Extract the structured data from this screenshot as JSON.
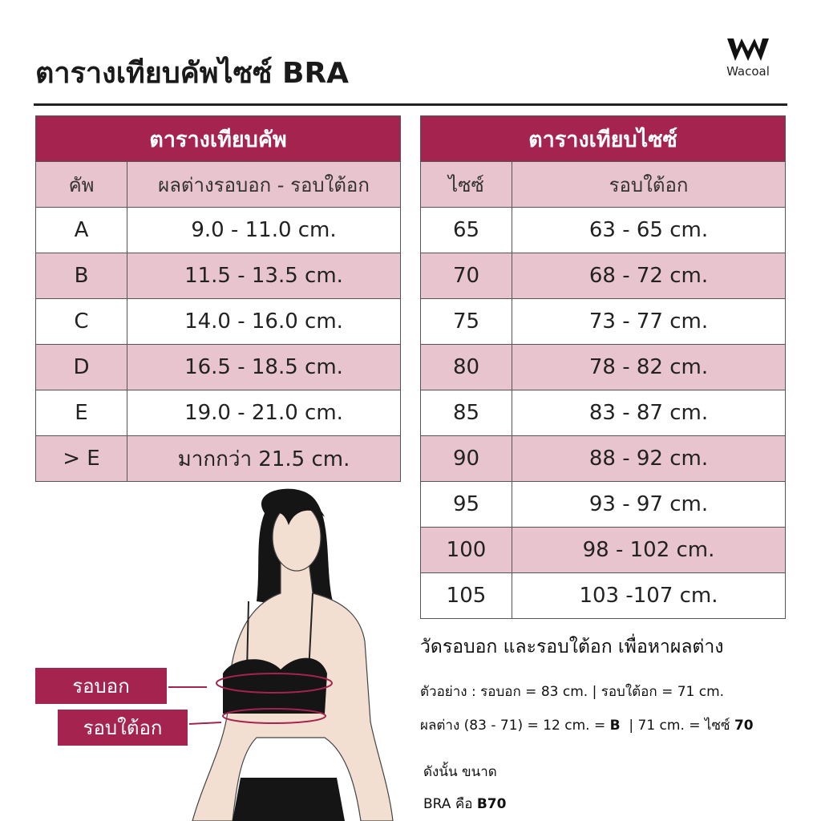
{
  "title": "ตารางเทียบคัพไซซ์ BRA",
  "logo": {
    "brand": "Wacoal"
  },
  "colors": {
    "accent": "#A4234F",
    "row_pink": "#E8C4CF"
  },
  "cup_table": {
    "title": "ตารางเทียบคัพ",
    "headers": [
      "คัพ",
      "ผลต่างรอบอก - รอบใต้อก"
    ],
    "rows": [
      [
        "A",
        "9.0 - 11.0 cm."
      ],
      [
        "B",
        "11.5 - 13.5 cm."
      ],
      [
        "C",
        "14.0 - 16.0 cm."
      ],
      [
        "D",
        "16.5 - 18.5 cm."
      ],
      [
        "E",
        "19.0 - 21.0 cm."
      ],
      [
        "> E",
        "มากกว่า 21.5 cm."
      ]
    ]
  },
  "size_table": {
    "title": "ตารางเทียบไซซ์",
    "headers": [
      "ไซซ์",
      "รอบใต้อก"
    ],
    "rows": [
      [
        "65",
        "63 - 65 cm."
      ],
      [
        "70",
        "68 - 72 cm."
      ],
      [
        "75",
        "73 - 77 cm."
      ],
      [
        "80",
        "78 - 82 cm."
      ],
      [
        "85",
        "83 - 87 cm."
      ],
      [
        "90",
        "88 - 92 cm."
      ],
      [
        "95",
        "93 - 97 cm."
      ],
      [
        "100",
        "98 - 102 cm."
      ],
      [
        "105",
        "103 -107 cm."
      ]
    ]
  },
  "labels": {
    "bust": "รอบอก",
    "underbust": "รอบใต้อก"
  },
  "instructions": {
    "heading": "วัดรอบอก และรอบใต้อก เพื่อหาผลต่าง",
    "example": "ตัวอย่าง :  รอบอก = 83 cm. | รอบใต้อก = 71 cm.",
    "calc_prefix": "ผลต่าง (83 - 71) = 12 cm. = ",
    "calc_cup": "B",
    "calc_mid": "  | 71 cm. = ไซซ์ ",
    "calc_size": "70",
    "result_line1": "ดังนั้น ขนาด",
    "result_prefix": "BRA คือ ",
    "result_value": "B70"
  }
}
